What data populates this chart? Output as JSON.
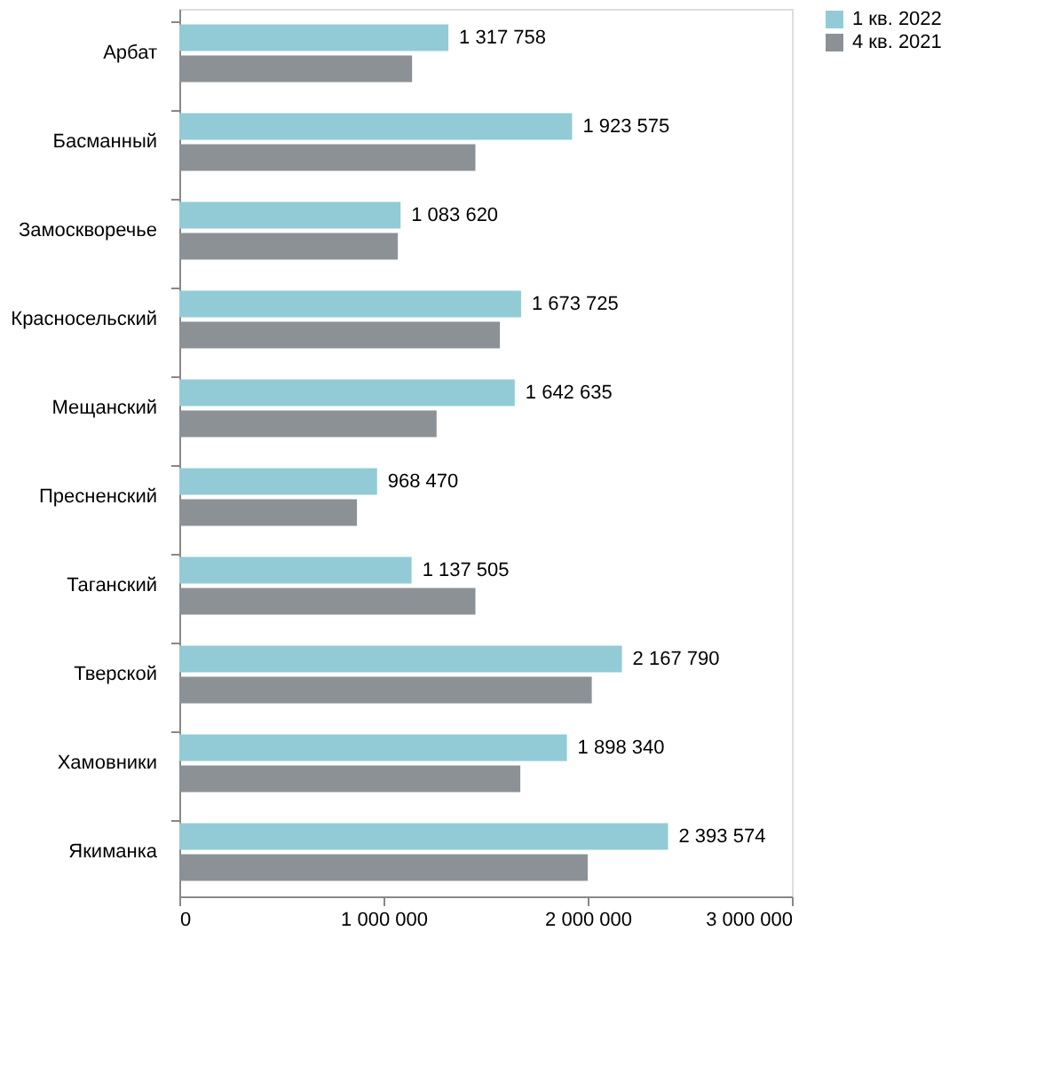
{
  "chart_data": {
    "type": "bar",
    "orientation": "horizontal",
    "categories": [
      "Арбат",
      "Басманный",
      "Замоскворечье",
      "Красносельский",
      "Мещанский",
      "Пресненский",
      "Таганский",
      "Тверской",
      "Хамовники",
      "Якиманка"
    ],
    "series": [
      {
        "name": "1 кв. 2022",
        "color": "#92cbd6",
        "values": [
          1317758,
          1923575,
          1083620,
          1673725,
          1642635,
          968470,
          1137505,
          2167790,
          1898340,
          2393574
        ],
        "value_labels": [
          "1 317 758",
          "1 923 575",
          "1 083 620",
          "1 673 725",
          "1 642 635",
          "968 470",
          "1 137 505",
          "2 167 790",
          "1 898 340",
          "2 393 574"
        ]
      },
      {
        "name": "4 кв. 2021",
        "color": "#8c9196",
        "values": [
          1140000,
          1450000,
          1070000,
          1570000,
          1260000,
          870000,
          1450000,
          2020000,
          1670000,
          2000000
        ]
      }
    ],
    "xlim": [
      0,
      3000000
    ],
    "xticks": [
      {
        "value": 0,
        "label": "0"
      },
      {
        "value": 1000000,
        "label": "1 000 000"
      },
      {
        "value": 2000000,
        "label": "2 000 000"
      },
      {
        "value": 3000000,
        "label": "3 000 000"
      }
    ],
    "grid": false,
    "legend": "right"
  }
}
